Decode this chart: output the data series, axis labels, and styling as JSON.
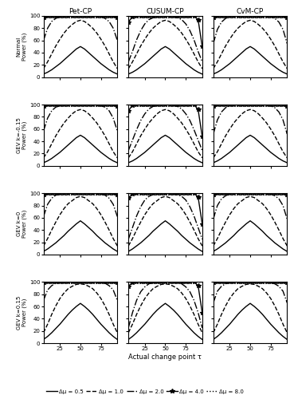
{
  "col_titles": [
    "Pet-CP",
    "CUSUM-CP",
    "CvM-CP"
  ],
  "row_labels": [
    "Normal\nPower (%)",
    "GEV k=-0.15\nPower (%)",
    "GEV k=0\nPower (%)",
    "GEV k=0.15\nPower (%)"
  ],
  "tau_values": [
    5,
    10,
    15,
    20,
    25,
    30,
    35,
    40,
    45,
    50,
    55,
    60,
    65,
    70,
    75,
    80,
    85,
    90,
    95
  ],
  "xlabel": "Actual change point τ",
  "legend_labels": [
    "Δμ = 0.5",
    "Δμ = 1.0",
    "Δμ = 2.0",
    "Δμ = 4.0",
    "Δμ = 8.0"
  ],
  "data": {
    "Normal": {
      "Pet-CP": {
        "d0.5": [
          5,
          8,
          12,
          17,
          22,
          28,
          34,
          40,
          46,
          50,
          46,
          40,
          34,
          28,
          22,
          17,
          12,
          8,
          5
        ],
        "d1.0": [
          14,
          25,
          38,
          51,
          62,
          72,
          80,
          86,
          91,
          93,
          91,
          86,
          80,
          72,
          62,
          51,
          38,
          25,
          14
        ],
        "d2.0": [
          60,
          80,
          91,
          96,
          99,
          100,
          100,
          100,
          100,
          100,
          100,
          100,
          100,
          100,
          99,
          96,
          91,
          80,
          60
        ],
        "d4.0": [
          98,
          100,
          100,
          100,
          100,
          100,
          100,
          100,
          100,
          100,
          100,
          100,
          100,
          100,
          100,
          100,
          100,
          100,
          98
        ],
        "d8.0": [
          100,
          100,
          100,
          100,
          100,
          100,
          100,
          100,
          100,
          100,
          100,
          100,
          100,
          100,
          100,
          100,
          100,
          100,
          100
        ]
      },
      "CUSUM-CP": {
        "d0.5": [
          5,
          8,
          12,
          17,
          22,
          28,
          34,
          40,
          46,
          50,
          46,
          40,
          34,
          28,
          22,
          17,
          12,
          8,
          5
        ],
        "d1.0": [
          14,
          25,
          38,
          51,
          62,
          72,
          80,
          86,
          91,
          93,
          91,
          86,
          80,
          72,
          62,
          51,
          38,
          25,
          14
        ],
        "d2.0": [
          25,
          42,
          61,
          76,
          87,
          94,
          97,
          99,
          100,
          100,
          100,
          99,
          97,
          94,
          87,
          76,
          61,
          42,
          25
        ],
        "d4.0": [
          90,
          99,
          100,
          100,
          100,
          100,
          100,
          100,
          100,
          100,
          100,
          100,
          100,
          100,
          100,
          100,
          100,
          94,
          50
        ],
        "d8.0": [
          100,
          100,
          100,
          100,
          100,
          100,
          100,
          100,
          100,
          100,
          100,
          100,
          100,
          100,
          100,
          100,
          100,
          100,
          100
        ]
      },
      "CvM-CP": {
        "d0.5": [
          5,
          8,
          12,
          17,
          22,
          28,
          34,
          40,
          46,
          50,
          46,
          40,
          34,
          28,
          22,
          17,
          12,
          8,
          5
        ],
        "d1.0": [
          14,
          25,
          38,
          51,
          62,
          72,
          80,
          86,
          91,
          93,
          91,
          86,
          80,
          72,
          62,
          51,
          38,
          25,
          14
        ],
        "d2.0": [
          55,
          78,
          90,
          96,
          99,
          100,
          100,
          100,
          100,
          100,
          100,
          100,
          100,
          100,
          99,
          96,
          90,
          78,
          55
        ],
        "d4.0": [
          98,
          100,
          100,
          100,
          100,
          100,
          100,
          100,
          100,
          100,
          100,
          100,
          100,
          100,
          100,
          100,
          100,
          100,
          98
        ],
        "d8.0": [
          100,
          100,
          100,
          100,
          100,
          100,
          100,
          100,
          100,
          100,
          100,
          100,
          100,
          100,
          100,
          100,
          100,
          100,
          100
        ]
      }
    },
    "GEV_neg": {
      "Pet-CP": {
        "d0.5": [
          5,
          8,
          12,
          17,
          22,
          28,
          34,
          40,
          46,
          50,
          46,
          40,
          34,
          28,
          22,
          17,
          12,
          8,
          5
        ],
        "d1.0": [
          13,
          23,
          36,
          49,
          60,
          70,
          78,
          85,
          90,
          92,
          90,
          85,
          78,
          70,
          60,
          49,
          36,
          23,
          13
        ],
        "d2.0": [
          57,
          78,
          90,
          96,
          98,
          100,
          100,
          100,
          100,
          100,
          100,
          100,
          100,
          100,
          98,
          96,
          90,
          78,
          57
        ],
        "d4.0": [
          98,
          100,
          100,
          100,
          100,
          100,
          100,
          100,
          100,
          100,
          100,
          100,
          100,
          100,
          100,
          100,
          100,
          100,
          98
        ],
        "d8.0": [
          100,
          100,
          100,
          100,
          100,
          100,
          100,
          100,
          100,
          100,
          100,
          100,
          100,
          100,
          100,
          100,
          100,
          100,
          100
        ]
      },
      "CUSUM-CP": {
        "d0.5": [
          5,
          8,
          12,
          17,
          22,
          28,
          34,
          40,
          46,
          50,
          46,
          40,
          34,
          28,
          22,
          17,
          12,
          8,
          5
        ],
        "d1.0": [
          13,
          23,
          36,
          49,
          60,
          70,
          78,
          85,
          90,
          92,
          90,
          85,
          78,
          70,
          60,
          49,
          36,
          23,
          13
        ],
        "d2.0": [
          25,
          42,
          59,
          74,
          85,
          93,
          97,
          99,
          100,
          100,
          100,
          99,
          97,
          93,
          85,
          74,
          59,
          42,
          25
        ],
        "d4.0": [
          90,
          99,
          100,
          100,
          100,
          100,
          100,
          100,
          100,
          100,
          100,
          100,
          100,
          100,
          100,
          100,
          100,
          92,
          48
        ],
        "d8.0": [
          100,
          100,
          100,
          100,
          100,
          100,
          100,
          100,
          100,
          100,
          100,
          100,
          100,
          100,
          100,
          100,
          100,
          100,
          100
        ]
      },
      "CvM-CP": {
        "d0.5": [
          5,
          8,
          12,
          17,
          22,
          28,
          34,
          40,
          46,
          50,
          46,
          40,
          34,
          28,
          22,
          17,
          12,
          8,
          5
        ],
        "d1.0": [
          13,
          23,
          36,
          49,
          60,
          70,
          78,
          85,
          90,
          92,
          90,
          85,
          78,
          70,
          60,
          49,
          36,
          23,
          13
        ],
        "d2.0": [
          52,
          75,
          88,
          95,
          98,
          99,
          100,
          100,
          100,
          100,
          100,
          100,
          100,
          99,
          98,
          95,
          88,
          75,
          52
        ],
        "d4.0": [
          98,
          100,
          100,
          100,
          100,
          100,
          100,
          100,
          100,
          100,
          100,
          100,
          100,
          100,
          100,
          100,
          100,
          100,
          98
        ],
        "d8.0": [
          100,
          100,
          100,
          100,
          100,
          100,
          100,
          100,
          100,
          100,
          100,
          100,
          100,
          100,
          100,
          100,
          100,
          100,
          100
        ]
      }
    },
    "GEV_zero": {
      "Pet-CP": {
        "d0.5": [
          5,
          9,
          14,
          19,
          25,
          31,
          38,
          44,
          50,
          55,
          50,
          44,
          38,
          31,
          25,
          19,
          14,
          9,
          5
        ],
        "d1.0": [
          14,
          26,
          40,
          53,
          65,
          75,
          83,
          88,
          93,
          95,
          93,
          88,
          83,
          75,
          65,
          53,
          40,
          26,
          14
        ],
        "d2.0": [
          62,
          82,
          92,
          97,
          99,
          100,
          100,
          100,
          100,
          100,
          100,
          100,
          100,
          100,
          99,
          97,
          92,
          82,
          62
        ],
        "d4.0": [
          98,
          100,
          100,
          100,
          100,
          100,
          100,
          100,
          100,
          100,
          100,
          100,
          100,
          100,
          100,
          100,
          100,
          100,
          98
        ],
        "d8.0": [
          100,
          100,
          100,
          100,
          100,
          100,
          100,
          100,
          100,
          100,
          100,
          100,
          100,
          100,
          100,
          100,
          100,
          100,
          100
        ]
      },
      "CUSUM-CP": {
        "d0.5": [
          5,
          9,
          14,
          19,
          25,
          31,
          38,
          44,
          50,
          55,
          50,
          44,
          38,
          31,
          25,
          19,
          14,
          9,
          5
        ],
        "d1.0": [
          14,
          26,
          40,
          53,
          65,
          75,
          83,
          88,
          93,
          95,
          93,
          88,
          83,
          75,
          65,
          53,
          40,
          26,
          14
        ],
        "d2.0": [
          25,
          44,
          63,
          78,
          89,
          95,
          98,
          99,
          100,
          100,
          100,
          99,
          98,
          95,
          89,
          78,
          63,
          44,
          25
        ],
        "d4.0": [
          92,
          99,
          100,
          100,
          100,
          100,
          100,
          100,
          100,
          100,
          100,
          100,
          100,
          100,
          100,
          100,
          100,
          94,
          50
        ],
        "d8.0": [
          100,
          100,
          100,
          100,
          100,
          100,
          100,
          100,
          100,
          100,
          100,
          100,
          100,
          100,
          100,
          100,
          100,
          100,
          100
        ]
      },
      "CvM-CP": {
        "d0.5": [
          5,
          9,
          14,
          19,
          25,
          31,
          38,
          44,
          50,
          55,
          50,
          44,
          38,
          31,
          25,
          19,
          14,
          9,
          5
        ],
        "d1.0": [
          14,
          26,
          40,
          53,
          65,
          75,
          83,
          88,
          93,
          95,
          93,
          88,
          83,
          75,
          65,
          53,
          40,
          26,
          14
        ],
        "d2.0": [
          58,
          80,
          91,
          96,
          99,
          100,
          100,
          100,
          100,
          100,
          100,
          100,
          100,
          100,
          99,
          96,
          91,
          80,
          58
        ],
        "d4.0": [
          98,
          100,
          100,
          100,
          100,
          100,
          100,
          100,
          100,
          100,
          100,
          100,
          100,
          100,
          100,
          100,
          100,
          100,
          98
        ],
        "d8.0": [
          100,
          100,
          100,
          100,
          100,
          100,
          100,
          100,
          100,
          100,
          100,
          100,
          100,
          100,
          100,
          100,
          100,
          100,
          100
        ]
      }
    },
    "GEV_pos": {
      "Pet-CP": {
        "d0.5": [
          6,
          11,
          17,
          24,
          31,
          39,
          47,
          54,
          60,
          65,
          60,
          54,
          47,
          39,
          31,
          24,
          17,
          11,
          6
        ],
        "d1.0": [
          17,
          31,
          47,
          61,
          73,
          82,
          89,
          93,
          96,
          97,
          96,
          93,
          89,
          82,
          73,
          61,
          47,
          31,
          17
        ],
        "d2.0": [
          70,
          87,
          94,
          98,
          99,
          100,
          100,
          100,
          100,
          100,
          100,
          100,
          100,
          100,
          99,
          98,
          94,
          87,
          70
        ],
        "d4.0": [
          99,
          100,
          100,
          100,
          100,
          100,
          100,
          100,
          100,
          100,
          100,
          100,
          100,
          100,
          100,
          100,
          100,
          100,
          99
        ],
        "d8.0": [
          100,
          100,
          100,
          100,
          100,
          100,
          100,
          100,
          100,
          100,
          100,
          100,
          100,
          100,
          100,
          100,
          100,
          100,
          100
        ]
      },
      "CUSUM-CP": {
        "d0.5": [
          6,
          11,
          17,
          24,
          31,
          39,
          47,
          54,
          60,
          65,
          60,
          54,
          47,
          39,
          31,
          24,
          17,
          11,
          6
        ],
        "d1.0": [
          17,
          31,
          47,
          61,
          73,
          82,
          89,
          93,
          96,
          97,
          96,
          93,
          89,
          82,
          73,
          61,
          47,
          31,
          17
        ],
        "d2.0": [
          25,
          50,
          70,
          84,
          92,
          97,
          99,
          100,
          100,
          100,
          100,
          100,
          99,
          97,
          92,
          84,
          70,
          50,
          25
        ],
        "d4.0": [
          93,
          99,
          100,
          100,
          100,
          100,
          100,
          100,
          100,
          100,
          100,
          100,
          100,
          100,
          100,
          100,
          100,
          94,
          50
        ],
        "d8.0": [
          100,
          100,
          100,
          100,
          100,
          100,
          100,
          100,
          100,
          100,
          100,
          100,
          100,
          100,
          100,
          100,
          100,
          100,
          100
        ]
      },
      "CvM-CP": {
        "d0.5": [
          6,
          11,
          17,
          24,
          31,
          39,
          47,
          54,
          60,
          65,
          60,
          54,
          47,
          39,
          31,
          24,
          17,
          11,
          6
        ],
        "d1.0": [
          17,
          31,
          47,
          61,
          73,
          82,
          89,
          93,
          96,
          97,
          96,
          93,
          89,
          82,
          73,
          61,
          47,
          31,
          17
        ],
        "d2.0": [
          66,
          85,
          93,
          97,
          99,
          100,
          100,
          100,
          100,
          100,
          100,
          100,
          100,
          100,
          99,
          97,
          93,
          85,
          66
        ],
        "d4.0": [
          99,
          100,
          100,
          100,
          100,
          100,
          100,
          100,
          100,
          100,
          100,
          100,
          100,
          100,
          100,
          100,
          100,
          100,
          99
        ],
        "d8.0": [
          100,
          100,
          100,
          100,
          100,
          100,
          100,
          100,
          100,
          100,
          100,
          100,
          100,
          100,
          100,
          100,
          100,
          100,
          100
        ]
      }
    }
  }
}
